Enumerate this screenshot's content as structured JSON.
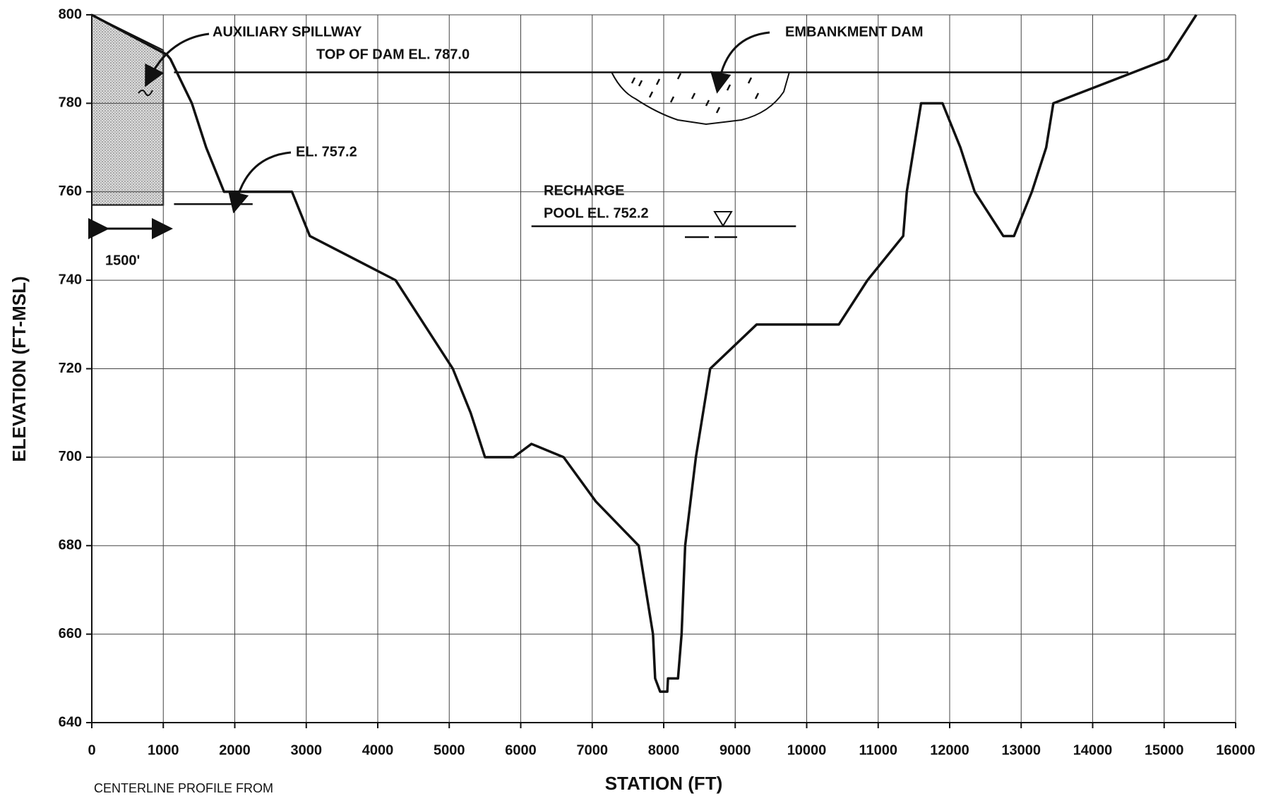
{
  "chart_data": {
    "type": "line",
    "xlabel": "STATION (FT)",
    "ylabel": "ELEVATION (FT-MSL)",
    "xlim": [
      0,
      16000
    ],
    "ylim": [
      640,
      800
    ],
    "xticks": [
      0,
      1000,
      2000,
      3000,
      4000,
      5000,
      6000,
      7000,
      8000,
      9000,
      10000,
      11000,
      12000,
      13000,
      14000,
      15000,
      16000
    ],
    "yticks": [
      640,
      660,
      680,
      700,
      720,
      740,
      760,
      780,
      800
    ],
    "grid": true,
    "series": [
      {
        "color": "#111111",
        "x": [
          0,
          1050,
          1100,
          1400,
          1600,
          1850,
          2800,
          3050,
          4250,
          4650,
          5050,
          5300,
          5500,
          5900,
          6150,
          6600,
          7050,
          7650,
          7750,
          7850,
          7880,
          7950,
          8050,
          8060,
          8200,
          8250,
          8300,
          8450,
          8650,
          9300,
          10450,
          10850,
          11350,
          11400,
          11500,
          11600,
          11900,
          12150,
          12350,
          12750,
          12900,
          13150,
          13350,
          13450,
          15050,
          15450
        ],
        "values": [
          800,
          791,
          790,
          780,
          770,
          760,
          760,
          750,
          740,
          730,
          720,
          710,
          700,
          700,
          703,
          700,
          690,
          680,
          670,
          660,
          650,
          647,
          647,
          650,
          650,
          660,
          680,
          700,
          720,
          730,
          730,
          740,
          750,
          760,
          770,
          780,
          780,
          770,
          760,
          750,
          750,
          760,
          770,
          780,
          790,
          800
        ]
      }
    ],
    "reference_lines": [
      {
        "value": 787.0,
        "x": [
          1150,
          14500
        ]
      },
      {
        "value": 757.2,
        "x": [
          1150,
          2250
        ]
      },
      {
        "value": 752.2,
        "x": [
          6150,
          9850
        ]
      }
    ],
    "shaded_region": {
      "x": [
        0,
        0,
        1000,
        1000
      ],
      "y": [
        757,
        800,
        792,
        757
      ]
    },
    "annotations": {
      "spillway": "AUXILIARY SPILLWAY",
      "top_of_dam": "TOP OF DAM EL. 787.0",
      "el_757": "EL. 757.2",
      "embankment": "EMBANKMENT DAM",
      "recharge": "RECHARGE",
      "pool": "POOL EL. 752.2",
      "width": "1500'",
      "source": "CENTERLINE PROFILE FROM"
    }
  }
}
